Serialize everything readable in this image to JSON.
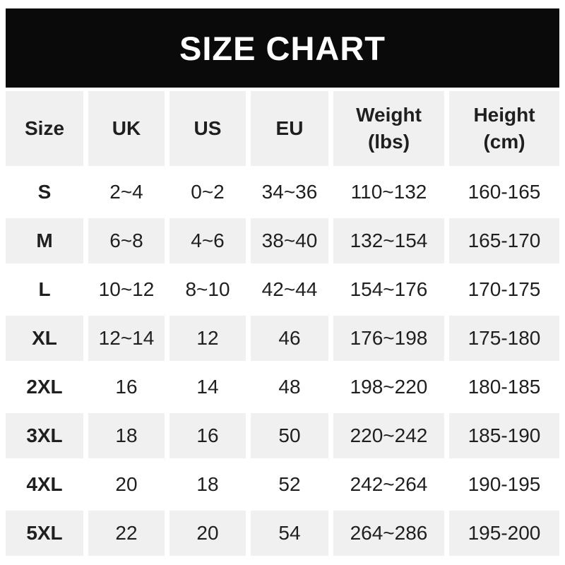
{
  "banner": {
    "title": "SIZE CHART"
  },
  "colors": {
    "banner_bg": "#0a0a0a",
    "banner_text": "#ffffff",
    "cell_gray": "#f0f0f0",
    "text": "#1f1f1f",
    "page_bg": "#ffffff"
  },
  "chart_data": {
    "type": "table",
    "title": "SIZE CHART",
    "headers": [
      "Size",
      "UK",
      "US",
      "EU",
      "Weight\n(lbs)",
      "Height\n(cm)"
    ],
    "rows": [
      [
        "S",
        "2~4",
        "0~2",
        "34~36",
        "110~132",
        "160-165"
      ],
      [
        "M",
        "6~8",
        "4~6",
        "38~40",
        "132~154",
        "165-170"
      ],
      [
        "L",
        "10~12",
        "8~10",
        "42~44",
        "154~176",
        "170-175"
      ],
      [
        "XL",
        "12~14",
        "12",
        "46",
        "176~198",
        "175-180"
      ],
      [
        "2XL",
        "16",
        "14",
        "48",
        "198~220",
        "180-185"
      ],
      [
        "3XL",
        "18",
        "16",
        "50",
        "220~242",
        "185-190"
      ],
      [
        "4XL",
        "20",
        "18",
        "52",
        "242~264",
        "190-195"
      ],
      [
        "5XL",
        "22",
        "20",
        "54",
        "264~286",
        "195-200"
      ]
    ]
  }
}
